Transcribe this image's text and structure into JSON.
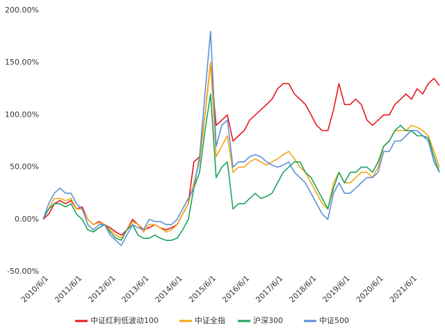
{
  "chart_data": {
    "type": "line",
    "x": [
      "2010/6/1",
      "2010/8/1",
      "2010/10/1",
      "2010/12/1",
      "2011/2/1",
      "2011/4/1",
      "2011/6/1",
      "2011/8/1",
      "2011/10/1",
      "2011/12/1",
      "2012/2/1",
      "2012/4/1",
      "2012/6/1",
      "2012/8/1",
      "2012/10/1",
      "2012/12/1",
      "2013/2/1",
      "2013/4/1",
      "2013/6/1",
      "2013/8/1",
      "2013/10/1",
      "2013/12/1",
      "2014/2/1",
      "2014/4/1",
      "2014/6/1",
      "2014/8/1",
      "2014/10/1",
      "2014/12/1",
      "2015/2/1",
      "2015/4/1",
      "2015/6/1",
      "2015/8/1",
      "2015/10/1",
      "2015/12/1",
      "2016/2/1",
      "2016/4/1",
      "2016/6/1",
      "2016/8/1",
      "2016/10/1",
      "2016/12/1",
      "2017/2/1",
      "2017/4/1",
      "2017/6/1",
      "2017/8/1",
      "2017/10/1",
      "2017/12/1",
      "2018/2/1",
      "2018/4/1",
      "2018/6/1",
      "2018/8/1",
      "2018/10/1",
      "2018/12/1",
      "2019/2/1",
      "2019/4/1",
      "2019/6/1",
      "2019/8/1",
      "2019/10/1",
      "2019/12/1",
      "2020/2/1",
      "2020/4/1",
      "2020/6/1",
      "2020/8/1",
      "2020/10/1",
      "2020/12/1",
      "2021/2/1",
      "2021/4/1",
      "2021/6/1",
      "2021/8/1",
      "2021/10/1",
      "2021/12/1",
      "2022/2/1",
      "2022/4/1"
    ],
    "series": [
      {
        "name": "中证红利低波动100",
        "color": "#e8141b",
        "values": [
          0,
          5,
          15,
          18,
          15,
          18,
          10,
          12,
          0,
          -5,
          -2,
          -5,
          -8,
          -12,
          -15,
          -10,
          0,
          -5,
          -10,
          -8,
          -5,
          -8,
          -10,
          -8,
          -5,
          5,
          15,
          55,
          60,
          100,
          150,
          90,
          95,
          100,
          75,
          80,
          85,
          95,
          100,
          105,
          110,
          115,
          125,
          130,
          130,
          120,
          115,
          110,
          100,
          90,
          85,
          85,
          105,
          130,
          110,
          110,
          115,
          110,
          95,
          90,
          95,
          100,
          100,
          110,
          115,
          120,
          115,
          125,
          120,
          130,
          135,
          128
        ]
      },
      {
        "name": "中证全指",
        "color": "#f2a516",
        "values": [
          0,
          10,
          20,
          20,
          18,
          20,
          10,
          10,
          0,
          -5,
          -3,
          -5,
          -10,
          -15,
          -18,
          -10,
          -2,
          -5,
          -12,
          -5,
          -5,
          -8,
          -12,
          -10,
          -5,
          5,
          15,
          35,
          55,
          100,
          150,
          60,
          70,
          80,
          45,
          50,
          50,
          55,
          58,
          55,
          52,
          55,
          58,
          62,
          65,
          58,
          50,
          45,
          35,
          25,
          15,
          10,
          35,
          45,
          35,
          35,
          40,
          45,
          45,
          40,
          50,
          70,
          75,
          85,
          85,
          85,
          90,
          88,
          85,
          80,
          65,
          50
        ]
      },
      {
        "name": "沪深300",
        "color": "#1aa35a",
        "values": [
          0,
          10,
          15,
          15,
          12,
          15,
          5,
          0,
          -10,
          -12,
          -8,
          -5,
          -12,
          -18,
          -20,
          -10,
          -5,
          -15,
          -18,
          -18,
          -15,
          -18,
          -20,
          -20,
          -18,
          -10,
          0,
          30,
          45,
          85,
          120,
          40,
          50,
          55,
          10,
          15,
          15,
          20,
          25,
          20,
          22,
          25,
          35,
          45,
          50,
          55,
          55,
          45,
          40,
          30,
          20,
          10,
          30,
          45,
          35,
          45,
          45,
          50,
          50,
          45,
          55,
          70,
          75,
          85,
          90,
          85,
          85,
          80,
          80,
          78,
          60,
          45
        ]
      },
      {
        "name": "中证500",
        "color": "#5b8fd6",
        "values": [
          0,
          15,
          25,
          30,
          25,
          25,
          15,
          10,
          -5,
          -10,
          -5,
          -5,
          -15,
          -20,
          -25,
          -15,
          -5,
          -8,
          -10,
          0,
          -2,
          -2,
          -5,
          -5,
          0,
          10,
          20,
          30,
          60,
          120,
          180,
          70,
          90,
          95,
          50,
          55,
          55,
          60,
          62,
          60,
          55,
          52,
          50,
          52,
          55,
          45,
          40,
          35,
          25,
          15,
          5,
          0,
          25,
          35,
          25,
          25,
          30,
          35,
          40,
          40,
          45,
          65,
          65,
          75,
          75,
          80,
          85,
          85,
          80,
          75,
          55,
          45
        ]
      }
    ],
    "xlim": [
      "2010/6/1",
      "2022/4/1"
    ],
    "xticks": [
      "2010/6/1",
      "2011/6/1",
      "2012/6/1",
      "2013/6/1",
      "2014/6/1",
      "2015/6/1",
      "2016/6/1",
      "2017/6/1",
      "2018/6/1",
      "2019/6/1",
      "2020/6/1",
      "2021/6/1"
    ],
    "ylim": [
      -50,
      200
    ],
    "yticks": [
      {
        "value": -50,
        "label": "-50.00%"
      },
      {
        "value": 0,
        "label": "0.00%"
      },
      {
        "value": 50,
        "label": "50.00%"
      },
      {
        "value": 100,
        "label": "100.00%"
      },
      {
        "value": 150,
        "label": "150.00%"
      },
      {
        "value": 200,
        "label": "200.00%"
      }
    ],
    "grid": false,
    "legend": "bottom"
  }
}
